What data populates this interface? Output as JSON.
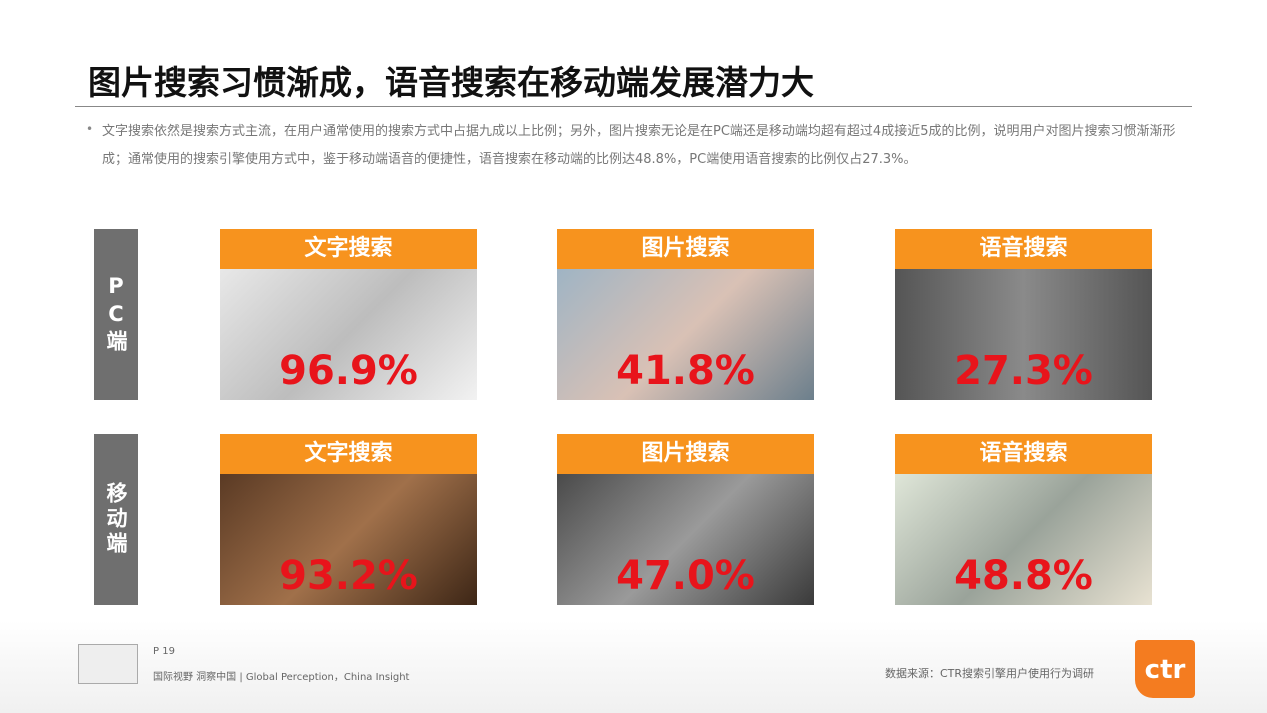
{
  "title": "图片搜索习惯渐成，语音搜索在移动端发展潜力大",
  "bullet": "文字搜索依然是搜索方式主流，在用户通常使用的搜索方式中占据九成以上比例；另外，图片搜索无论是在PC端还是移动端均超有超过4成接近5成的比例，说明用户对图片搜索习惯渐渐形成；通常使用的搜索引擎使用方式中，鉴于移动端语音的便捷性，语音搜索在移动端的比例达48.8%，PC端使用语音搜索的比例仅占27.3%。",
  "rows": [
    {
      "label": "PC端",
      "cards": [
        {
          "label": "文字搜索",
          "value": "96.9%"
        },
        {
          "label": "图片搜索",
          "value": "41.8%"
        },
        {
          "label": "语音搜索",
          "value": "27.3%"
        }
      ]
    },
    {
      "label": "移动端",
      "cards": [
        {
          "label": "文字搜索",
          "value": "93.2%"
        },
        {
          "label": "图片搜索",
          "value": "47.0%"
        },
        {
          "label": "语音搜索",
          "value": "48.8%"
        }
      ]
    }
  ],
  "footer": {
    "page": "P 19",
    "slogan": "国际视野 洞察中国 | Global Perception，China Insight",
    "source": "数据来源：CTR搜索引擎用户使用行为调研",
    "logo": "ctr"
  }
}
